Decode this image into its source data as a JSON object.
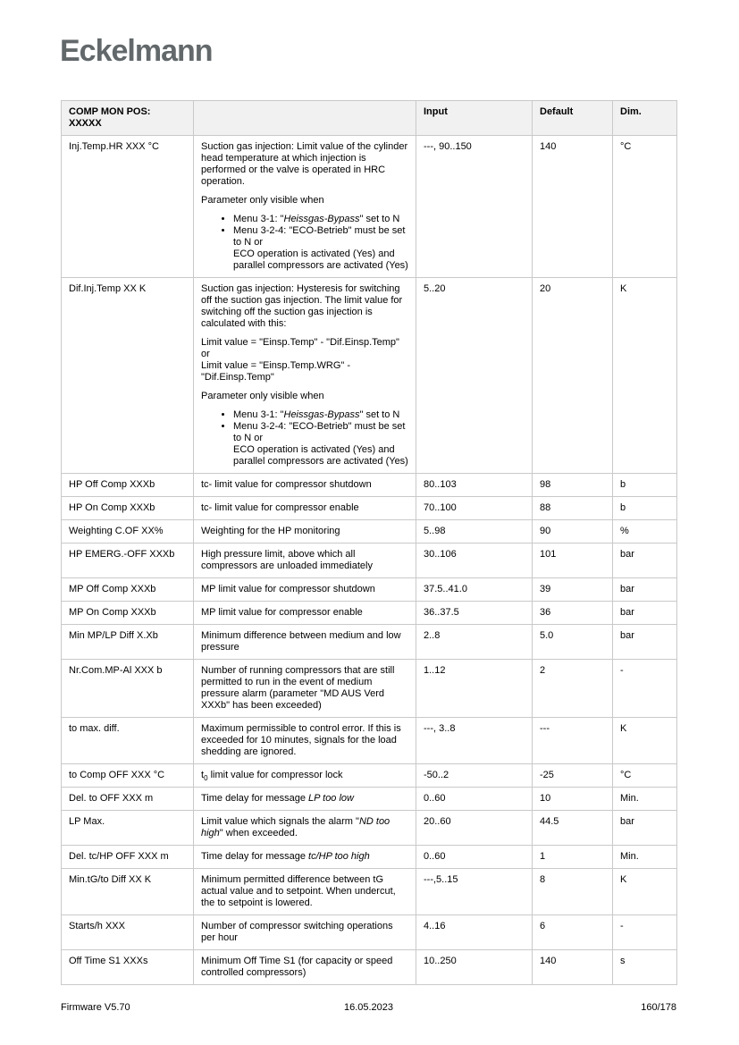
{
  "page": {
    "logo": "Eckelmann",
    "footer": {
      "left": "Firmware V5.70",
      "center": "16.05.2023",
      "right": "160/178"
    }
  },
  "colors": {
    "brand_gray": "#63696b",
    "header_bg": "#f1f1f1",
    "table_border": "#c9c9c9"
  },
  "table": {
    "header": {
      "param": "COMP MON POS: XXXXX",
      "description": "",
      "input": "Input",
      "default": "Default",
      "dim": "Dim."
    },
    "rows": [
      {
        "param": "Inj.Temp.HR XXX °C",
        "desc": [
          {
            "type": "p",
            "parts": [
              {
                "text": "Suction gas injection: Limit value of the cylinder head temperature at which injection is performed or the valve is operated in HRC operation."
              }
            ]
          },
          {
            "type": "p",
            "parts": [
              {
                "text": "Parameter only visible when"
              }
            ]
          },
          {
            "type": "bullets",
            "items": [
              [
                {
                  "text": "Menu 3-1: \""
                },
                {
                  "text": "Heissgas-Bypass",
                  "italic": true
                },
                {
                  "text": "\" set to N"
                }
              ],
              [
                {
                  "text": "Menu 3-2-4: \"ECO-Betrieb\" must be set to N or\nECO operation is activated (Yes) and\nparallel compressors are activated (Yes)"
                }
              ]
            ]
          }
        ],
        "input": "---, 90..150",
        "default": "140",
        "dim": "°C"
      },
      {
        "param": "Dif.Inj.Temp XX K",
        "desc": [
          {
            "type": "p",
            "parts": [
              {
                "text": "Suction gas injection: Hysteresis for switching off the suction gas injection. The limit value for switching off the suction gas injection is calculated with this:"
              }
            ]
          },
          {
            "type": "p",
            "parts": [
              {
                "text": "Limit value = \"Einsp.Temp\" - \"Dif.Einsp.Temp\" or\nLimit value = \"Einsp.Temp.WRG\" - \"Dif.Einsp.Temp\""
              }
            ]
          },
          {
            "type": "p",
            "parts": [
              {
                "text": "Parameter only visible when"
              }
            ]
          },
          {
            "type": "bullets",
            "items": [
              [
                {
                  "text": "Menu 3-1: \""
                },
                {
                  "text": "Heissgas-Bypass",
                  "italic": true
                },
                {
                  "text": "\" set to N"
                }
              ],
              [
                {
                  "text": "Menu 3-2-4: \"ECO-Betrieb\" must be set to N or\nECO operation is activated (Yes) and\nparallel compressors are activated (Yes)"
                }
              ]
            ]
          }
        ],
        "input": "5..20",
        "default": "20",
        "dim": "K"
      },
      {
        "param": "HP Off Comp XXXb",
        "desc": [
          {
            "type": "p",
            "parts": [
              {
                "text": "tc- limit value for compressor shutdown"
              }
            ]
          }
        ],
        "input": "80..103",
        "default": "98",
        "dim": "b"
      },
      {
        "param": "HP On Comp XXXb",
        "desc": [
          {
            "type": "p",
            "parts": [
              {
                "text": "tc- limit value for compressor enable"
              }
            ]
          }
        ],
        "input": "70..100",
        "default": "88",
        "dim": "b"
      },
      {
        "param": "Weighting C.OF XX%",
        "desc": [
          {
            "type": "p",
            "parts": [
              {
                "text": "Weighting for the HP monitoring"
              }
            ]
          }
        ],
        "input": "5..98",
        "default": "90",
        "dim": "%"
      },
      {
        "param": "HP EMERG.-OFF XXXb",
        "desc": [
          {
            "type": "p",
            "parts": [
              {
                "text": "High pressure limit, above which all compressors are unloaded immediately"
              }
            ]
          }
        ],
        "input": "30..106",
        "default": "101",
        "dim": "bar"
      },
      {
        "param": "MP Off Comp XXXb",
        "desc": [
          {
            "type": "p",
            "parts": [
              {
                "text": "MP limit value for compressor shutdown"
              }
            ]
          }
        ],
        "input": "37.5..41.0",
        "default": "39",
        "dim": "bar"
      },
      {
        "param": "MP On Comp XXXb",
        "desc": [
          {
            "type": "p",
            "parts": [
              {
                "text": "MP limit value for compressor enable"
              }
            ]
          }
        ],
        "input": "36..37.5",
        "default": "36",
        "dim": "bar"
      },
      {
        "param": "Min MP/LP Diff X.Xb",
        "desc": [
          {
            "type": "p",
            "parts": [
              {
                "text": "Minimum difference between medium and low pressure"
              }
            ]
          }
        ],
        "input": "2..8",
        "default": "5.0",
        "dim": "bar"
      },
      {
        "param": "Nr.Com.MP-Al XXX b",
        "desc": [
          {
            "type": "p",
            "parts": [
              {
                "text": "Number of running compressors that are still permitted to run in the event of medium pressure alarm (parameter \"MD AUS Verd XXXb\" has been exceeded)"
              }
            ]
          }
        ],
        "input": "1..12",
        "default": "2",
        "dim": "-"
      },
      {
        "param": "to max. diff.",
        "desc": [
          {
            "type": "p",
            "parts": [
              {
                "text": "Maximum permissible to control error. If this is exceeded for 10 minutes, signals for the load shedding are ignored."
              }
            ]
          }
        ],
        "input": "---, 3..8",
        "default": "---",
        "dim": "K"
      },
      {
        "param": "to Comp OFF XXX °C",
        "desc": [
          {
            "type": "p",
            "parts": [
              {
                "text": "t"
              },
              {
                "text": "0",
                "sub": true
              },
              {
                "text": " limit value for compressor lock"
              }
            ]
          }
        ],
        "input": "-50..2",
        "default": "-25",
        "dim": "°C"
      },
      {
        "param": "Del. to OFF XXX m",
        "desc": [
          {
            "type": "p",
            "parts": [
              {
                "text": "Time delay for message "
              },
              {
                "text": "LP too low",
                "italic": true
              }
            ]
          }
        ],
        "input": "0..60",
        "default": "10",
        "dim": "Min."
      },
      {
        "param": "LP Max.",
        "desc": [
          {
            "type": "p",
            "parts": [
              {
                "text": "Limit value which signals the alarm \""
              },
              {
                "text": "ND too high",
                "italic": true
              },
              {
                "text": "\" when exceeded."
              }
            ]
          }
        ],
        "input": "20..60",
        "default": "44.5",
        "dim": "bar"
      },
      {
        "param": "Del. tc/HP OFF XXX m",
        "desc": [
          {
            "type": "p",
            "parts": [
              {
                "text": "Time delay for message "
              },
              {
                "text": "tc/HP too high",
                "italic": true
              }
            ]
          }
        ],
        "input": "0..60",
        "default": "1",
        "dim": "Min."
      },
      {
        "param": "Min.tG/to Diff XX K",
        "desc": [
          {
            "type": "p",
            "parts": [
              {
                "text": "Minimum permitted difference between tG actual value and to setpoint. When undercut, the to setpoint is lowered."
              }
            ]
          }
        ],
        "input": "---,5..15",
        "default": "8",
        "dim": "K"
      },
      {
        "param": "Starts/h XXX",
        "desc": [
          {
            "type": "p",
            "parts": [
              {
                "text": "Number of compressor switching operations per hour"
              }
            ]
          }
        ],
        "input": "4..16",
        "default": "6",
        "dim": "-"
      },
      {
        "param": "Off Time S1 XXXs",
        "desc": [
          {
            "type": "p",
            "parts": [
              {
                "text": "Minimum Off Time S1 (for capacity or speed controlled compressors)"
              }
            ]
          }
        ],
        "input": "10..250",
        "default": "140",
        "dim": "s"
      }
    ]
  }
}
